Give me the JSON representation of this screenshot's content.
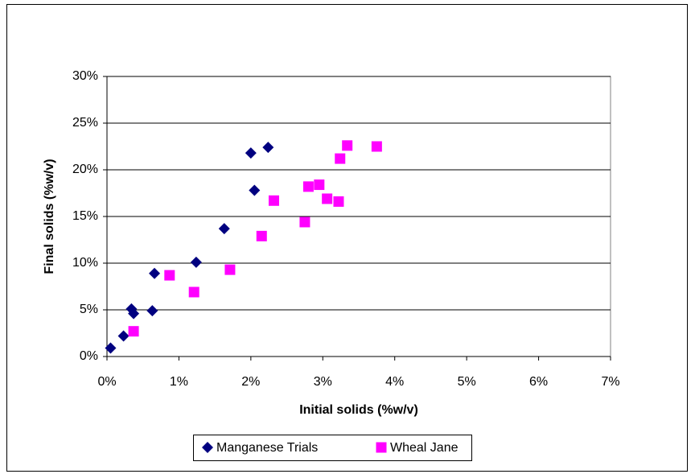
{
  "chart_data": {
    "type": "scatter",
    "x_label": "Initial solids (%w/v)",
    "y_label": "Final solids (%w/v)",
    "xlim": [
      0,
      7
    ],
    "ylim": [
      0,
      30
    ],
    "xticks": [
      {
        "value": 0,
        "label": "0%"
      },
      {
        "value": 1,
        "label": "1%"
      },
      {
        "value": 2,
        "label": "2%"
      },
      {
        "value": 3,
        "label": "3%"
      },
      {
        "value": 4,
        "label": "4%"
      },
      {
        "value": 5,
        "label": "5%"
      },
      {
        "value": 6,
        "label": "6%"
      },
      {
        "value": 7,
        "label": "7%"
      }
    ],
    "yticks": [
      {
        "value": 0,
        "label": "0%"
      },
      {
        "value": 5,
        "label": "5%"
      },
      {
        "value": 10,
        "label": "10%"
      },
      {
        "value": 15,
        "label": "15%"
      },
      {
        "value": 20,
        "label": "20%"
      },
      {
        "value": 25,
        "label": "25%"
      },
      {
        "value": 30,
        "label": "30%"
      }
    ],
    "grid": true,
    "legend": "bottom",
    "series": [
      {
        "name": "Manganese Trials",
        "color": "#000080",
        "marker": "diamond",
        "x": [
          0.05,
          0.23,
          0.34,
          0.37,
          0.63,
          0.66,
          1.24,
          1.63,
          2.0,
          2.05,
          2.24
        ],
        "values": [
          0.9,
          2.2,
          5.1,
          4.6,
          4.9,
          8.9,
          10.1,
          13.7,
          21.8,
          17.8,
          22.4
        ]
      },
      {
        "name": "Wheal Jane",
        "color": "#ff00ff",
        "marker": "square",
        "x": [
          0.37,
          0.87,
          1.21,
          1.71,
          2.15,
          2.32,
          2.75,
          2.8,
          2.95,
          3.06,
          3.22,
          3.24,
          3.34,
          3.75
        ],
        "values": [
          2.7,
          8.7,
          6.9,
          9.3,
          12.9,
          16.7,
          14.4,
          18.2,
          18.4,
          16.9,
          16.6,
          21.2,
          22.6,
          22.5
        ]
      }
    ]
  }
}
